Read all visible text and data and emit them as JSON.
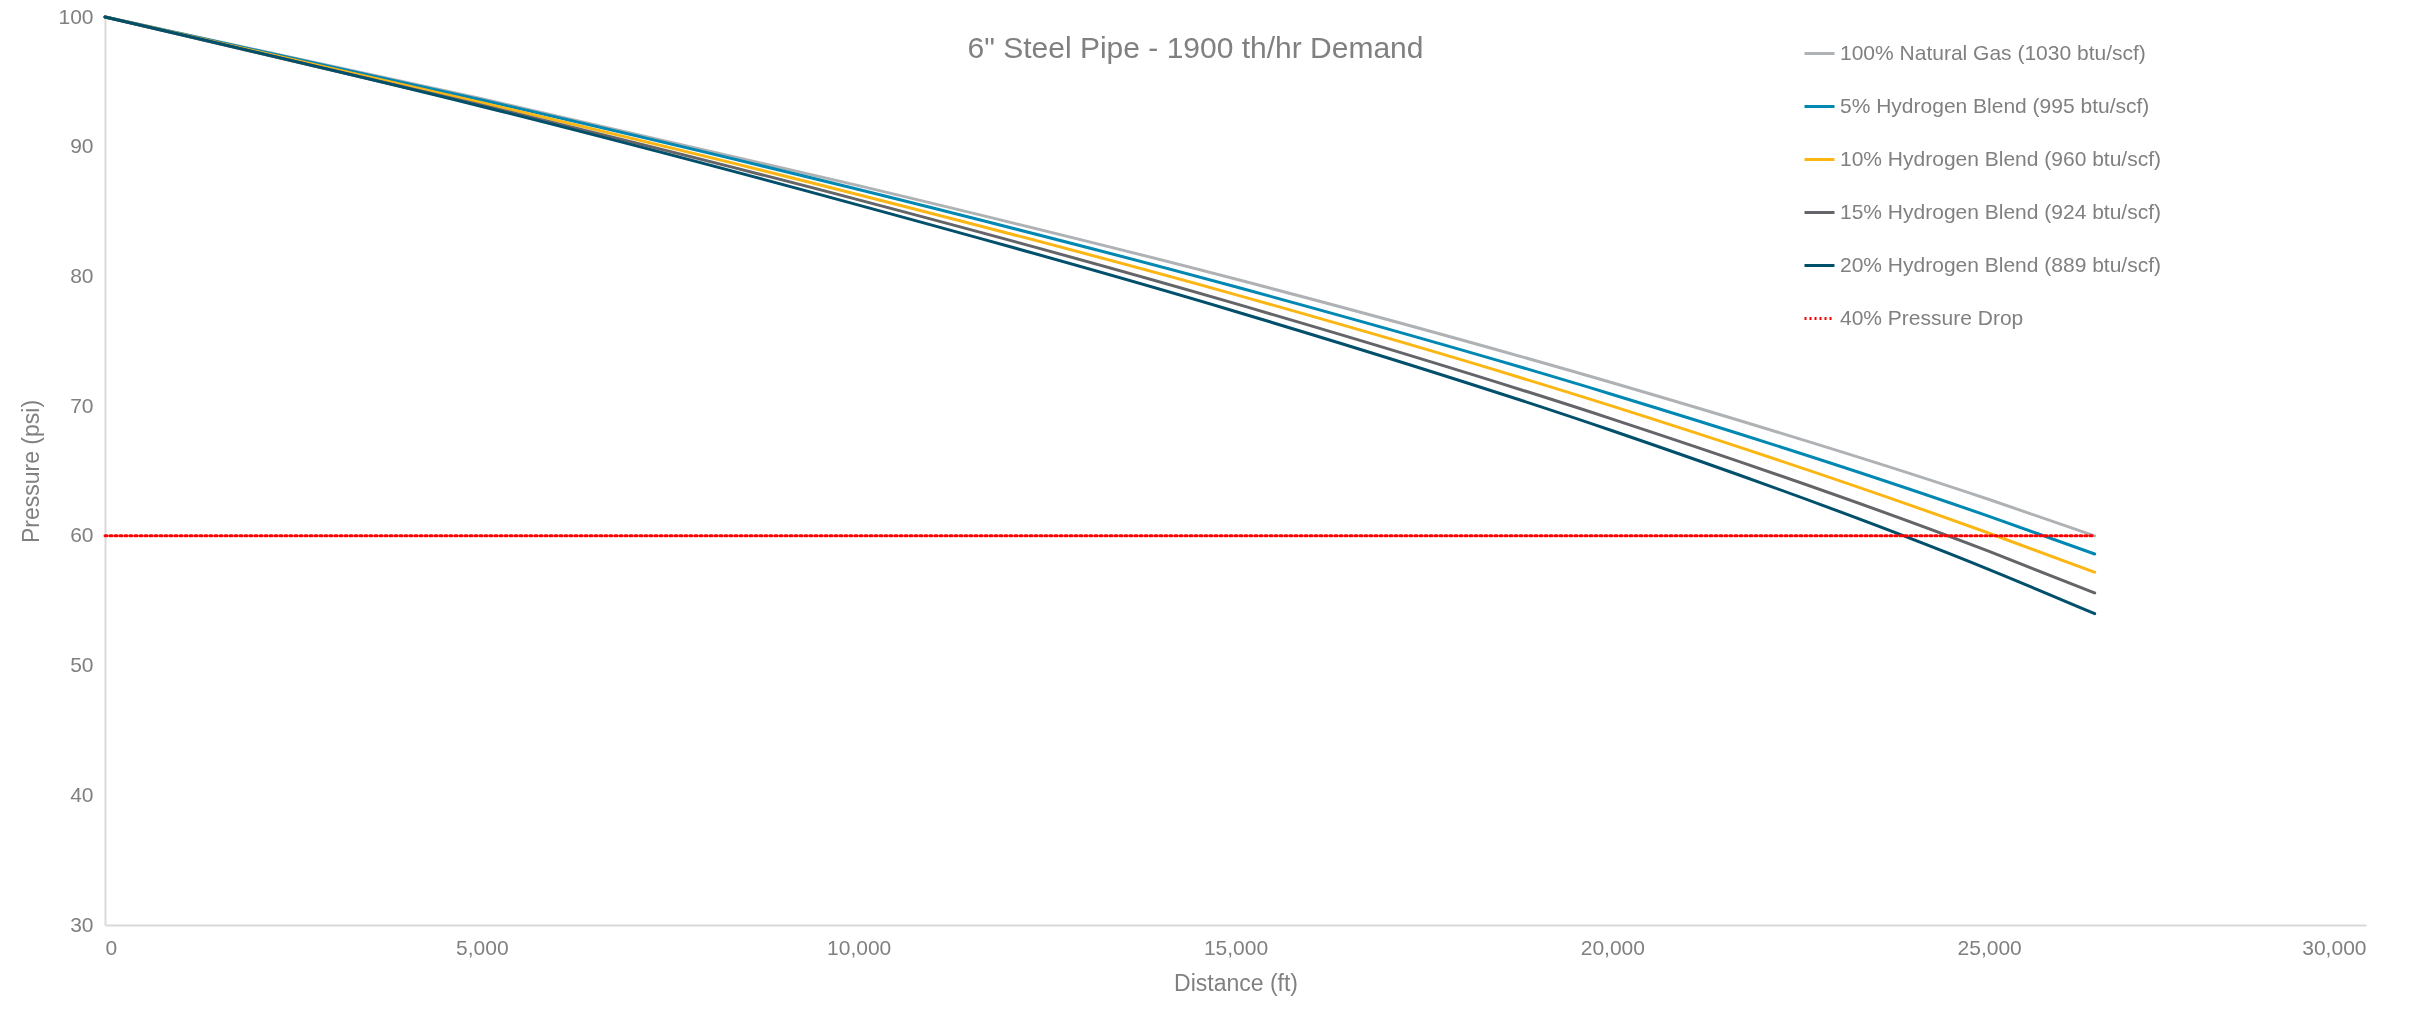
{
  "chart_data": {
    "type": "line",
    "title": "6\" Steel Pipe - 1900 th/hr Demand",
    "xlabel": "Distance (ft)",
    "ylabel": "Pressure (psi)",
    "x": [
      0,
      5000,
      10000,
      15000,
      20000,
      25000,
      26400
    ],
    "series": [
      {
        "name": "100% Natural Gas (1030 btu/scf)",
        "color": "#afb2b5",
        "values": [
          100,
          93.7,
          87.0,
          79.8,
          71.8,
          62.8,
          60.0
        ]
      },
      {
        "name": "5% Hydrogen Blend (995 btu/scf)",
        "color": "#0088b3",
        "values": [
          100,
          93.6,
          86.7,
          79.2,
          70.9,
          61.5,
          58.6
        ]
      },
      {
        "name": "10% Hydrogen Blend (960 btu/scf)",
        "color": "#fbb614",
        "values": [
          100,
          93.4,
          86.3,
          78.6,
          70.0,
          60.2,
          57.2
        ]
      },
      {
        "name": "15% Hydrogen Blend (924 btu/scf)",
        "color": "#636569",
        "values": [
          100,
          93.2,
          85.9,
          77.9,
          69.0,
          58.8,
          55.6
        ]
      },
      {
        "name": "20% Hydrogen Blend (889 btu/scf)",
        "color": "#00506b",
        "values": [
          100,
          93.1,
          85.5,
          77.3,
          68.1,
          57.4,
          54.0
        ]
      },
      {
        "name": "40% Pressure Drop",
        "color": "#ff0000",
        "type": "line",
        "line_style": "dotted",
        "x": [
          0,
          26400
        ],
        "values": [
          60,
          60
        ]
      }
    ],
    "xlim": [
      0,
      30000
    ],
    "xticks": [
      0,
      {
        "value": 5000,
        "label": "5,000"
      },
      {
        "value": 10000,
        "label": "10,000"
      },
      {
        "value": 15000,
        "label": "15,000"
      },
      {
        "value": 20000,
        "label": "20,000"
      },
      {
        "value": 25000,
        "label": "25,000"
      },
      {
        "value": 30000,
        "label": "30,000"
      }
    ],
    "ylim": [
      30,
      100
    ],
    "yticks": [
      30,
      40,
      50,
      60,
      70,
      80,
      90,
      100
    ],
    "grid": false,
    "legend": "top right",
    "line_style": "solid",
    "marker": "none"
  }
}
